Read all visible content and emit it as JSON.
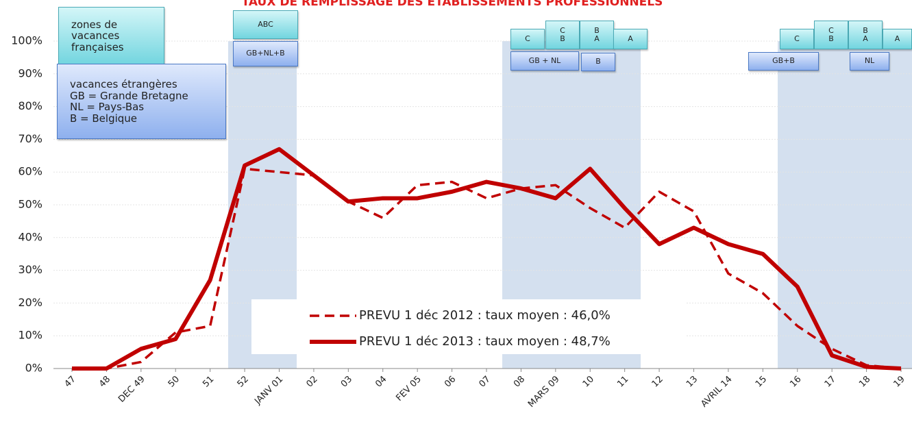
{
  "chart_data": {
    "type": "line",
    "title": "TAUX DE REMPLISSAGE DES ETABLISSEMENTS PROFESSIONNELS",
    "categories": [
      "47",
      "48",
      "DEC 49",
      "50",
      "51",
      "52",
      "JANV 01",
      "02",
      "03",
      "04",
      "FEV 05",
      "06",
      "07",
      "08",
      "MARS 09",
      "10",
      "11",
      "12",
      "13",
      "AVRIL 14",
      "15",
      "16",
      "17",
      "18",
      "19"
    ],
    "series": [
      {
        "name": "PREVU 1 déc 2012 : taux moyen : 46,0%",
        "color": "#c00000",
        "dash": true,
        "values": [
          0,
          0,
          2,
          11,
          13,
          61,
          60,
          59,
          51,
          46,
          56,
          57,
          52,
          55,
          56,
          49,
          43,
          54,
          48,
          29,
          23,
          13,
          6,
          1,
          0
        ]
      },
      {
        "name": "PREVU 1 déc 2013 : taux moyen : 48,7%",
        "color": "#c00000",
        "dash": false,
        "values": [
          0,
          0,
          6,
          9,
          27,
          62,
          67,
          59,
          51,
          52,
          52,
          54,
          57,
          55,
          52,
          61,
          49,
          38,
          43,
          38,
          35,
          25,
          4,
          0.5,
          0
        ]
      }
    ],
    "ylim": [
      0,
      100
    ],
    "yticks": [
      {
        "value": 0,
        "label": "0%"
      },
      {
        "value": 10,
        "label": "10%"
      },
      {
        "value": 20,
        "label": "20%"
      },
      {
        "value": 30,
        "label": "30%"
      },
      {
        "value": 40,
        "label": "40%"
      },
      {
        "value": 50,
        "label": "50%"
      },
      {
        "value": 60,
        "label": "60%"
      },
      {
        "value": 70,
        "label": "70%"
      },
      {
        "value": 80,
        "label": "80%"
      },
      {
        "value": 90,
        "label": "90%"
      },
      {
        "value": 100,
        "label": "100%"
      }
    ],
    "grid": true,
    "annotations": [
      {
        "lines": [
          "zones de",
          "vacances",
          "françaises"
        ]
      },
      {
        "lines": [
          "vacances étrangères",
          "GB = Grande Bretagne",
          "NL = Pays-Bas",
          "B = Belgique"
        ]
      },
      {
        "lines": [
          "ABC"
        ]
      },
      {
        "lines": [
          "GB+NL+B"
        ]
      },
      {
        "lines": [
          "C"
        ]
      },
      {
        "lines": [
          "C",
          "B"
        ]
      },
      {
        "lines": [
          "B",
          "A"
        ]
      },
      {
        "lines": [
          "A"
        ]
      },
      {
        "lines": [
          "GB + NL"
        ]
      },
      {
        "lines": [
          "B"
        ]
      },
      {
        "lines": [
          "C"
        ]
      },
      {
        "lines": [
          "C",
          "B"
        ]
      },
      {
        "lines": [
          "B",
          "A"
        ]
      },
      {
        "lines": [
          "A"
        ]
      },
      {
        "lines": [
          "GB+B"
        ]
      },
      {
        "lines": [
          "NL"
        ]
      }
    ]
  }
}
